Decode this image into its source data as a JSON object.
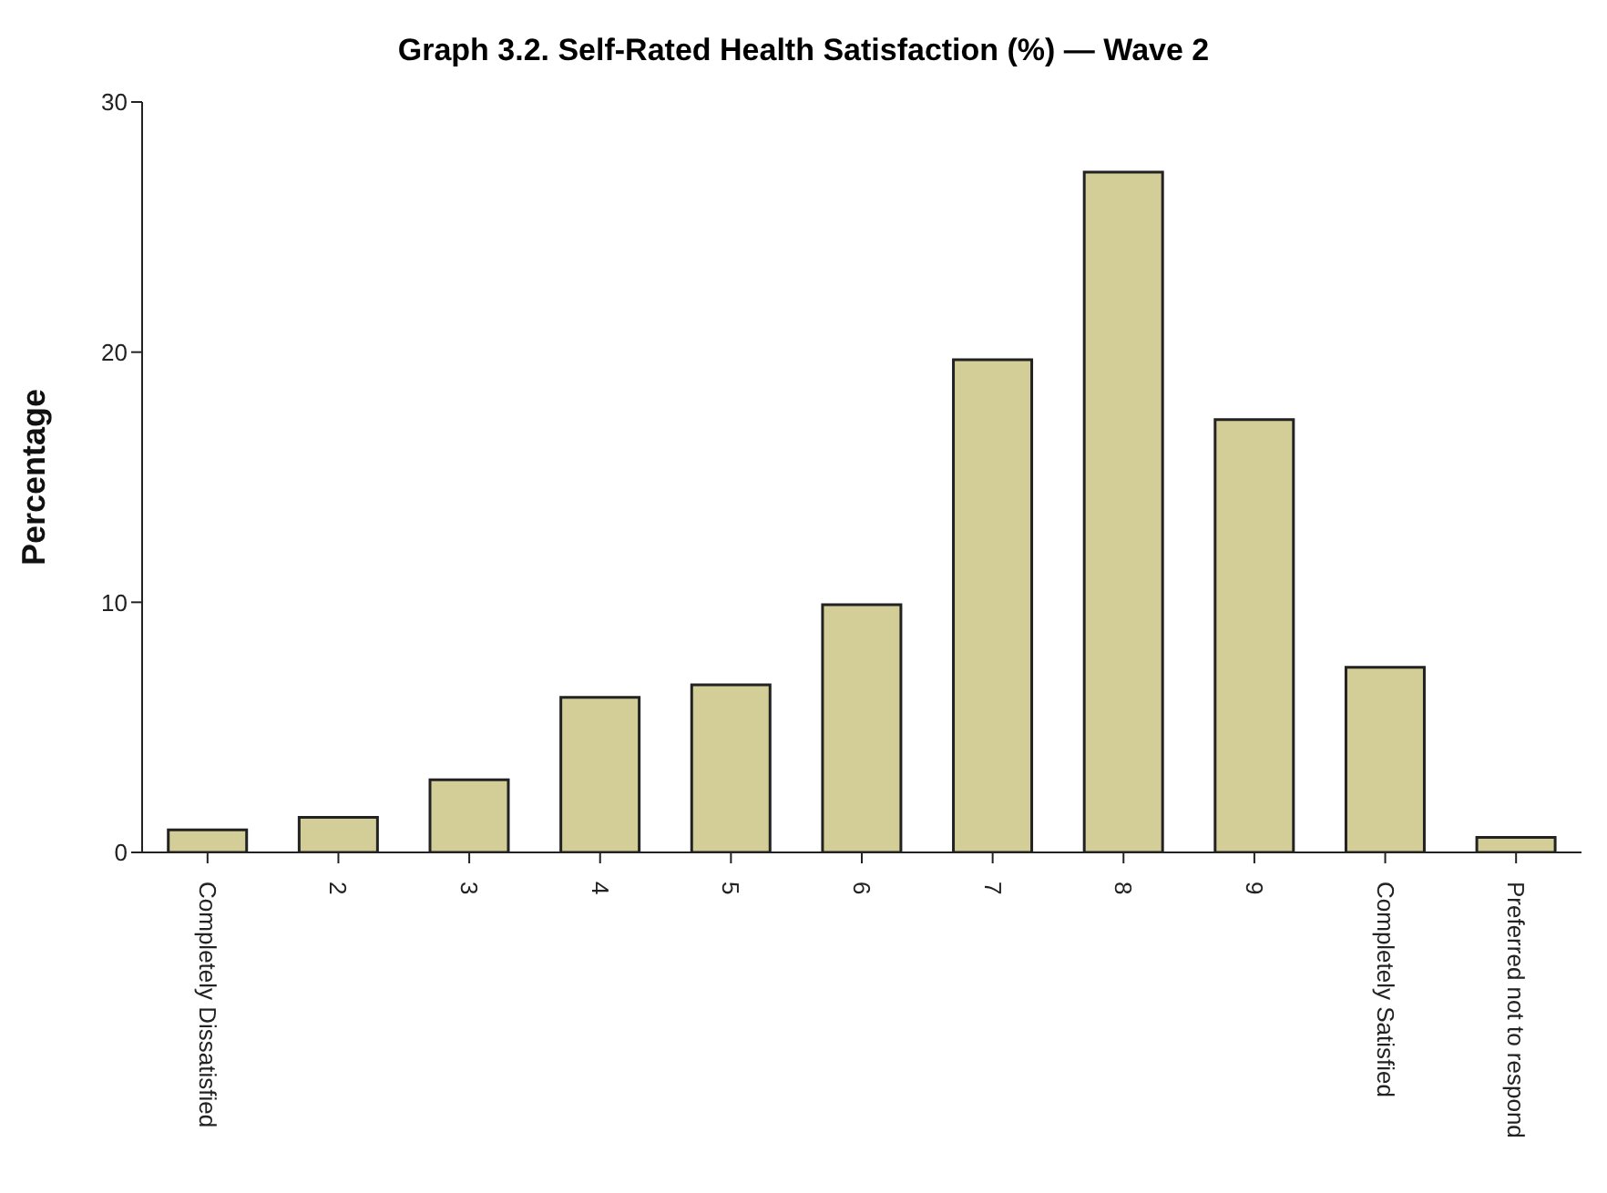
{
  "chart_data": {
    "type": "bar",
    "title": "Graph 3.2. Self-Rated Health Satisfaction (%) — Wave 2",
    "ylabel": "Percentage",
    "categories": [
      "Completely Dissatisfied",
      "2",
      "3",
      "4",
      "5",
      "6",
      "7",
      "8",
      "9",
      "Completely Satisfied",
      "Preferred not to respond"
    ],
    "values": [
      0.9,
      1.4,
      2.9,
      6.2,
      6.7,
      9.9,
      19.7,
      27.2,
      17.3,
      7.4,
      0.6
    ],
    "color": "#d3ce97",
    "ylim": [
      0,
      30
    ],
    "yticks": [
      0,
      10,
      20,
      30
    ],
    "grid": false,
    "legend": false
  }
}
